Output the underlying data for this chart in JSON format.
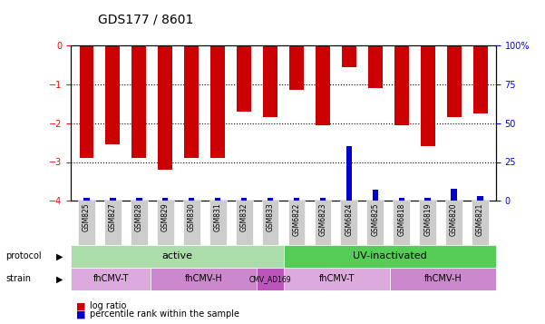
{
  "title": "GDS177 / 8601",
  "samples": [
    "GSM825",
    "GSM827",
    "GSM828",
    "GSM829",
    "GSM830",
    "GSM831",
    "GSM832",
    "GSM833",
    "GSM6822",
    "GSM6823",
    "GSM6824",
    "GSM6825",
    "GSM6818",
    "GSM6819",
    "GSM6820",
    "GSM6821"
  ],
  "log_ratio": [
    -2.9,
    -2.55,
    -2.9,
    -3.2,
    -2.9,
    -2.9,
    -1.7,
    -1.85,
    -1.15,
    -2.05,
    -0.55,
    -1.1,
    -2.05,
    -2.6,
    -1.85,
    -1.75
  ],
  "percentile": [
    2,
    2,
    2,
    2,
    2,
    2,
    2,
    2,
    2,
    2,
    35,
    7,
    2,
    2,
    8,
    3
  ],
  "ylim_left": [
    -4,
    0
  ],
  "ylim_right": [
    0,
    100
  ],
  "yticks_left": [
    -4,
    -3,
    -2,
    -1,
    0
  ],
  "yticks_right": [
    0,
    25,
    50,
    75,
    100
  ],
  "bar_color": "#cc0000",
  "percentile_color": "#0000cc",
  "protocol_active_color": "#99ee99",
  "protocol_uv_color": "#44cc44",
  "strain_color_T": "#ee99ee",
  "strain_color_H": "#dd77dd",
  "strain_color_ad": "#cc55cc",
  "tick_label_bg": "#cccccc",
  "protocol_groups": [
    {
      "label": "active",
      "start": 0,
      "end": 8,
      "color": "#aaddaa"
    },
    {
      "label": "UV-inactivated",
      "start": 8,
      "end": 16,
      "color": "#55cc55"
    }
  ],
  "strain_groups": [
    {
      "label": "fhCMV-T",
      "start": 0,
      "end": 3,
      "color": "#ddaadd"
    },
    {
      "label": "fhCMV-H",
      "start": 3,
      "end": 7,
      "color": "#cc88cc"
    },
    {
      "label": "CMV_AD169",
      "start": 7,
      "end": 8,
      "color": "#cc55cc"
    },
    {
      "label": "fhCMV-T",
      "start": 8,
      "end": 12,
      "color": "#ddaadd"
    },
    {
      "label": "fhCMV-H",
      "start": 12,
      "end": 16,
      "color": "#cc88cc"
    }
  ],
  "legend_log_ratio_color": "#cc0000",
  "legend_percentile_color": "#0000cc"
}
